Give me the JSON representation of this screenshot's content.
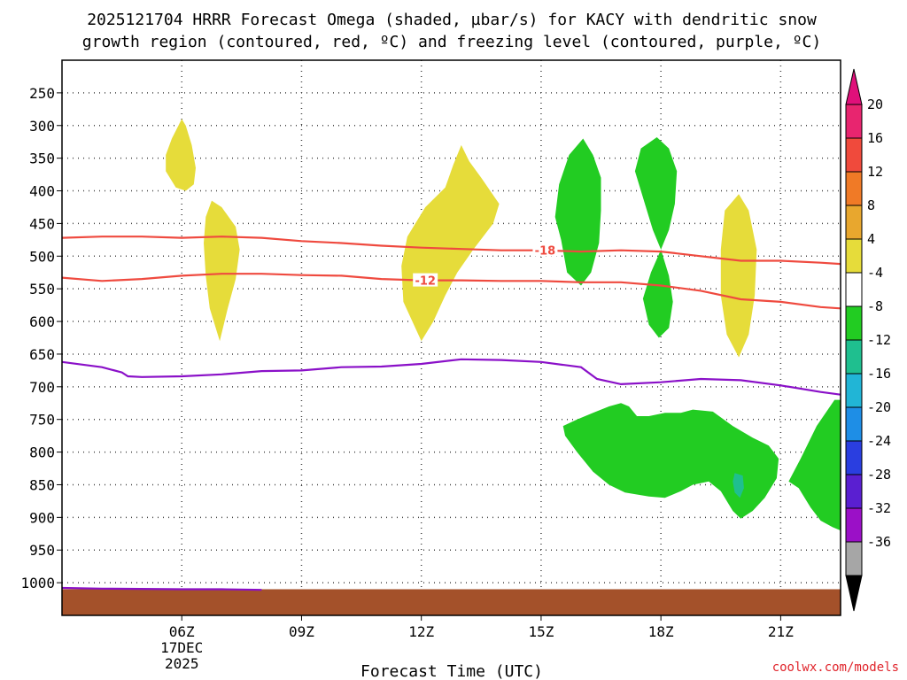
{
  "chart_data": {
    "type": "heatmap",
    "title_line1": "2025121704 HRRR Forecast Omega (shaded, µbar/s) for KACY with dendritic snow",
    "title_line2": "growth region (contoured, red, ºC) and freezing level (contoured, purple, ºC)",
    "xlabel": "Forecast Time (UTC)",
    "credit": "coolwx.com/models",
    "xlim": [
      3.0,
      22.5
    ],
    "ylim": [
      200,
      1050
    ],
    "x_ticks": [
      {
        "value": 6,
        "label": "06Z",
        "sub1": "17DEC",
        "sub2": "2025"
      },
      {
        "value": 9,
        "label": "09Z",
        "sub1": "",
        "sub2": ""
      },
      {
        "value": 12,
        "label": "12Z",
        "sub1": "",
        "sub2": ""
      },
      {
        "value": 15,
        "label": "15Z",
        "sub1": "",
        "sub2": ""
      },
      {
        "value": 18,
        "label": "18Z",
        "sub1": "",
        "sub2": ""
      },
      {
        "value": 21,
        "label": "21Z",
        "sub1": "",
        "sub2": ""
      }
    ],
    "y_ticks": [
      {
        "value": 250,
        "label": "250"
      },
      {
        "value": 300,
        "label": "300"
      },
      {
        "value": 350,
        "label": "350"
      },
      {
        "value": 400,
        "label": "400"
      },
      {
        "value": 450,
        "label": "450"
      },
      {
        "value": 500,
        "label": "500"
      },
      {
        "value": 550,
        "label": "550"
      },
      {
        "value": 600,
        "label": "600"
      },
      {
        "value": 650,
        "label": "650"
      },
      {
        "value": 700,
        "label": "700"
      },
      {
        "value": 750,
        "label": "750"
      },
      {
        "value": 800,
        "label": "800"
      },
      {
        "value": 850,
        "label": "850"
      },
      {
        "value": 900,
        "label": "900"
      },
      {
        "value": 950,
        "label": "950"
      },
      {
        "value": 1000,
        "label": "1000"
      }
    ],
    "colorbar": {
      "levels": [
        {
          "label": "20",
          "color": "#e8256f"
        },
        {
          "label": "16",
          "color": "#f04a3c"
        },
        {
          "label": "12",
          "color": "#f07a26"
        },
        {
          "label": "8",
          "color": "#e8a72e"
        },
        {
          "label": "4",
          "color": "#e6dc3a"
        },
        {
          "label": "-4",
          "color": "#ffffff"
        },
        {
          "label": "-8",
          "color": "#22cc22"
        },
        {
          "label": "-12",
          "color": "#1fbf8f"
        },
        {
          "label": "-16",
          "color": "#21b5d6"
        },
        {
          "label": "-20",
          "color": "#1e8ee6"
        },
        {
          "label": "-24",
          "color": "#2a3ee0"
        },
        {
          "label": "-28",
          "color": "#5a1fd1"
        },
        {
          "label": "-32",
          "color": "#9b10c7"
        },
        {
          "label": "-36",
          "color": "#a6a6a6"
        }
      ],
      "top_arrow_color": "#e0107a",
      "bottom_arrow_color": "#000000"
    },
    "omega_regions": [
      {
        "name": "positive-4-8",
        "color": "#e6dc3a",
        "points": [
          [
            6.0,
            290
          ],
          [
            6.1,
            300
          ],
          [
            6.25,
            330
          ],
          [
            6.35,
            365
          ],
          [
            6.3,
            390
          ],
          [
            6.1,
            400
          ],
          [
            5.85,
            395
          ],
          [
            5.6,
            370
          ],
          [
            5.6,
            345
          ],
          [
            5.75,
            320
          ]
        ]
      },
      {
        "name": "positive-4-8",
        "color": "#e6dc3a",
        "points": [
          [
            6.75,
            415
          ],
          [
            7.0,
            425
          ],
          [
            7.35,
            455
          ],
          [
            7.45,
            490
          ],
          [
            7.35,
            535
          ],
          [
            7.15,
            580
          ],
          [
            6.95,
            630
          ],
          [
            6.7,
            580
          ],
          [
            6.6,
            530
          ],
          [
            6.55,
            480
          ],
          [
            6.6,
            440
          ]
        ]
      },
      {
        "name": "positive-4-8",
        "color": "#e6dc3a",
        "points": [
          [
            13.0,
            330
          ],
          [
            13.2,
            355
          ],
          [
            13.5,
            380
          ],
          [
            13.95,
            420
          ],
          [
            13.8,
            450
          ],
          [
            13.3,
            490
          ],
          [
            12.9,
            525
          ],
          [
            12.6,
            560
          ],
          [
            12.3,
            600
          ],
          [
            12.0,
            630
          ],
          [
            11.55,
            570
          ],
          [
            11.5,
            515
          ],
          [
            11.65,
            470
          ],
          [
            12.1,
            425
          ],
          [
            12.6,
            395
          ],
          [
            12.8,
            360
          ]
        ]
      },
      {
        "name": "positive-4-8",
        "color": "#e6dc3a",
        "points": [
          [
            19.95,
            405
          ],
          [
            20.2,
            430
          ],
          [
            20.4,
            490
          ],
          [
            20.35,
            560
          ],
          [
            20.2,
            620
          ],
          [
            19.95,
            655
          ],
          [
            19.65,
            620
          ],
          [
            19.5,
            560
          ],
          [
            19.5,
            490
          ],
          [
            19.6,
            430
          ]
        ]
      },
      {
        "name": "negative-4-8",
        "color": "#22cc22",
        "points": [
          [
            16.05,
            320
          ],
          [
            16.3,
            345
          ],
          [
            16.5,
            380
          ],
          [
            16.5,
            430
          ],
          [
            16.45,
            480
          ],
          [
            16.25,
            525
          ],
          [
            16.0,
            545
          ],
          [
            15.65,
            525
          ],
          [
            15.5,
            475
          ],
          [
            15.35,
            440
          ],
          [
            15.45,
            390
          ],
          [
            15.7,
            345
          ]
        ]
      },
      {
        "name": "negative-4-8",
        "color": "#22cc22",
        "points": [
          [
            17.9,
            318
          ],
          [
            18.2,
            335
          ],
          [
            18.4,
            370
          ],
          [
            18.35,
            420
          ],
          [
            18.2,
            460
          ],
          [
            18.0,
            490
          ],
          [
            17.8,
            460
          ],
          [
            17.6,
            420
          ],
          [
            17.35,
            370
          ],
          [
            17.5,
            335
          ]
        ]
      },
      {
        "name": "negative-4-8",
        "color": "#22cc22",
        "points": [
          [
            18.0,
            490
          ],
          [
            18.2,
            530
          ],
          [
            18.3,
            570
          ],
          [
            18.2,
            610
          ],
          [
            17.95,
            625
          ],
          [
            17.7,
            605
          ],
          [
            17.55,
            565
          ],
          [
            17.75,
            525
          ]
        ]
      },
      {
        "name": "negative-4-8",
        "color": "#22cc22",
        "points": [
          [
            15.55,
            760
          ],
          [
            15.9,
            750
          ],
          [
            16.3,
            740
          ],
          [
            16.7,
            730
          ],
          [
            17.0,
            725
          ],
          [
            17.2,
            730
          ],
          [
            17.4,
            745
          ],
          [
            17.7,
            745
          ],
          [
            18.1,
            740
          ],
          [
            18.5,
            740
          ],
          [
            18.8,
            735
          ],
          [
            19.3,
            738
          ],
          [
            19.8,
            760
          ],
          [
            20.3,
            778
          ],
          [
            20.7,
            790
          ],
          [
            20.95,
            810
          ],
          [
            20.9,
            840
          ],
          [
            20.6,
            870
          ],
          [
            20.3,
            890
          ],
          [
            20.0,
            902
          ],
          [
            19.8,
            890
          ],
          [
            19.5,
            860
          ],
          [
            19.2,
            845
          ],
          [
            18.8,
            850
          ],
          [
            18.5,
            860
          ],
          [
            18.1,
            870
          ],
          [
            17.7,
            868
          ],
          [
            17.1,
            862
          ],
          [
            16.7,
            850
          ],
          [
            16.3,
            830
          ],
          [
            15.9,
            800
          ],
          [
            15.6,
            775
          ]
        ]
      },
      {
        "name": "negative-4-8",
        "color": "#22cc22",
        "points": [
          [
            22.35,
            720
          ],
          [
            22.5,
            720
          ],
          [
            22.5,
            920
          ],
          [
            22.3,
            915
          ],
          [
            22.0,
            905
          ],
          [
            21.75,
            885
          ],
          [
            21.45,
            855
          ],
          [
            21.2,
            845
          ],
          [
            21.5,
            810
          ],
          [
            21.9,
            760
          ]
        ]
      },
      {
        "name": "negative-8-12",
        "color": "#1fbf8f",
        "points": [
          [
            19.85,
            832
          ],
          [
            20.05,
            836
          ],
          [
            20.08,
            855
          ],
          [
            19.98,
            870
          ],
          [
            19.85,
            862
          ],
          [
            19.8,
            845
          ]
        ]
      }
    ],
    "snow_growth_contours": [
      {
        "label": "-18",
        "label_x": 15.1,
        "color": "#ef4a3f",
        "points": [
          [
            3.0,
            472
          ],
          [
            4.0,
            470
          ],
          [
            5.0,
            470
          ],
          [
            6.0,
            472
          ],
          [
            7.0,
            470
          ],
          [
            8.0,
            472
          ],
          [
            9.0,
            477
          ],
          [
            10.0,
            480
          ],
          [
            11.0,
            484
          ],
          [
            12.0,
            487
          ],
          [
            13.0,
            489
          ],
          [
            14.0,
            491
          ],
          [
            15.0,
            491
          ],
          [
            16.0,
            493
          ],
          [
            17.0,
            491
          ],
          [
            18.0,
            493
          ],
          [
            19.0,
            500
          ],
          [
            20.0,
            507
          ],
          [
            21.0,
            507
          ],
          [
            22.0,
            510
          ],
          [
            22.5,
            512
          ]
        ]
      },
      {
        "label": "-12",
        "label_x": 12.1,
        "color": "#ef4a3f",
        "points": [
          [
            3.0,
            533
          ],
          [
            4.0,
            538
          ],
          [
            5.0,
            535
          ],
          [
            6.0,
            530
          ],
          [
            7.0,
            527
          ],
          [
            8.0,
            527
          ],
          [
            9.0,
            529
          ],
          [
            10.0,
            530
          ],
          [
            11.0,
            535
          ],
          [
            12.0,
            537
          ],
          [
            13.0,
            537
          ],
          [
            14.0,
            538
          ],
          [
            15.0,
            538
          ],
          [
            16.0,
            540
          ],
          [
            17.0,
            540
          ],
          [
            18.0,
            545
          ],
          [
            19.0,
            553
          ],
          [
            20.0,
            566
          ],
          [
            21.0,
            570
          ],
          [
            22.0,
            578
          ],
          [
            22.5,
            580
          ]
        ]
      }
    ],
    "freezing_level": {
      "color": "#8a10c8",
      "points": [
        [
          3.0,
          662
        ],
        [
          4.0,
          670
        ],
        [
          4.5,
          678
        ],
        [
          4.65,
          684
        ],
        [
          5.0,
          685
        ],
        [
          6.0,
          684
        ],
        [
          7.0,
          681
        ],
        [
          8.0,
          676
        ],
        [
          9.0,
          675
        ],
        [
          10.0,
          670
        ],
        [
          11.0,
          669
        ],
        [
          12.0,
          665
        ],
        [
          13.0,
          658
        ],
        [
          14.0,
          659
        ],
        [
          15.0,
          662
        ],
        [
          16.0,
          670
        ],
        [
          16.4,
          688
        ],
        [
          17.0,
          696
        ],
        [
          18.0,
          693
        ],
        [
          19.0,
          688
        ],
        [
          20.0,
          690
        ],
        [
          21.0,
          698
        ],
        [
          22.0,
          708
        ],
        [
          22.5,
          712
        ]
      ],
      "surface_segment": [
        [
          3.0,
          1008
        ],
        [
          4.0,
          1009
        ],
        [
          6.0,
          1010
        ],
        [
          7.0,
          1010
        ],
        [
          8.0,
          1011
        ]
      ]
    },
    "ground": {
      "color": "#a4512a",
      "top": 1010
    }
  }
}
